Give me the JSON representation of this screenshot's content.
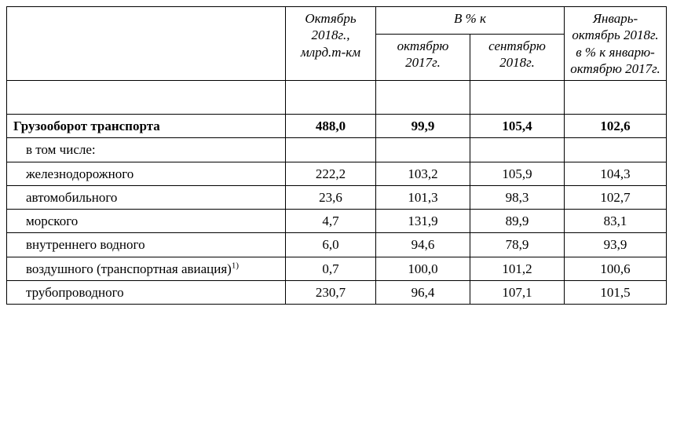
{
  "table": {
    "type": "table",
    "background_color": "#ffffff",
    "border_color": "#000000",
    "font_family": "Times New Roman",
    "header": {
      "col1": "Октябрь 2018г., млрд.т-км",
      "group": "В % к",
      "col2": "октябрю 2017г.",
      "col3": "сентябрю 2018г.",
      "col4": "Январь-октябрь 2018г. в % к январю-октябрю 2017г."
    },
    "rows": [
      {
        "label": "Грузооборот транспорта",
        "indent": false,
        "bold": true,
        "v1": "488,0",
        "v2": "99,9",
        "v3": "105,4",
        "v4": "102,6"
      },
      {
        "label": "в том числе:",
        "indent": true,
        "bold": false,
        "v1": "",
        "v2": "",
        "v3": "",
        "v4": ""
      },
      {
        "label": "железнодорожного",
        "indent": true,
        "bold": false,
        "v1": "222,2",
        "v2": "103,2",
        "v3": "105,9",
        "v4": "104,3"
      },
      {
        "label": "автомобильного",
        "indent": true,
        "bold": false,
        "v1": "23,6",
        "v2": "101,3",
        "v3": "98,3",
        "v4": "102,7"
      },
      {
        "label": "морского",
        "indent": true,
        "bold": false,
        "v1": "4,7",
        "v2": "131,9",
        "v3": "89,9",
        "v4": "83,1"
      },
      {
        "label": "внутреннего водного",
        "indent": true,
        "bold": false,
        "v1": "6,0",
        "v2": "94,6",
        "v3": "78,9",
        "v4": "93,9"
      },
      {
        "label": "воздушного  (транспортная авиация)",
        "sup": "1)",
        "indent": true,
        "bold": false,
        "v1": "0,7",
        "v2": "100,0",
        "v3": "101,2",
        "v4": "100,6"
      },
      {
        "label": "трубопроводного",
        "indent": true,
        "bold": false,
        "v1": "230,7",
        "v2": "96,4",
        "v3": "107,1",
        "v4": "101,5"
      }
    ]
  }
}
